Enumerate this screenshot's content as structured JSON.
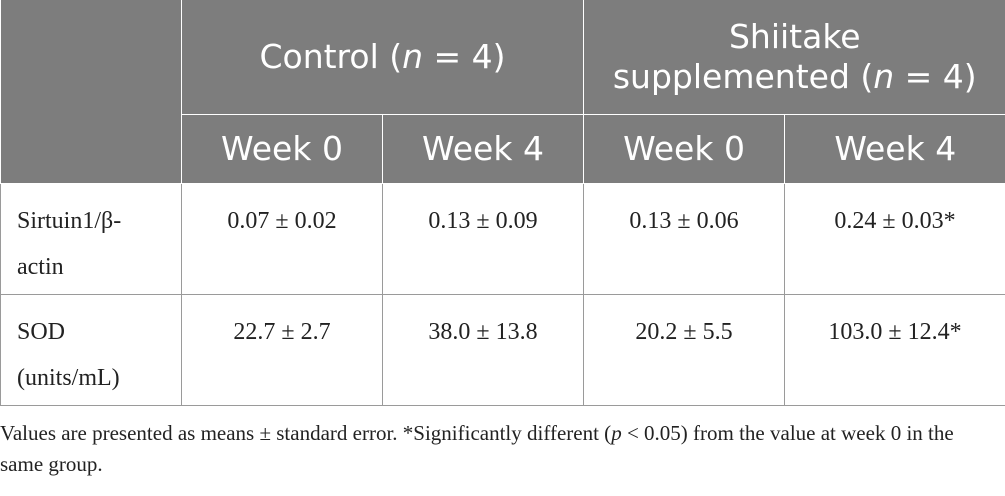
{
  "header": {
    "group1": {
      "label": "Control (",
      "n_symbol": "n",
      "n_value": " = 4)"
    },
    "group2": {
      "line1": "Shiitake",
      "label": "supplemented (",
      "n_symbol": "n",
      "n_value": " = 4)"
    },
    "weeks": [
      "Week 0",
      "Week 4",
      "Week 0",
      "Week 4"
    ]
  },
  "rows": [
    {
      "label_line1": "Sirtuin1/β-",
      "label_line2": "actin",
      "values": [
        "0.07 ± 0.02",
        "0.13 ± 0.09",
        "0.13 ± 0.06",
        "0.24 ± 0.03*"
      ]
    },
    {
      "label_line1": "SOD",
      "label_line2": "(units/mL)",
      "values": [
        "22.7 ± 2.7",
        "38.0 ± 13.8",
        "20.2 ± 5.5",
        "103.0 ± 12.4*"
      ]
    }
  ],
  "footnote": {
    "part1": "Values are presented as means ± standard error. *Significantly different (",
    "p_symbol": "p",
    "part2": " < 0.05) from the value at week 0 in the same group."
  }
}
